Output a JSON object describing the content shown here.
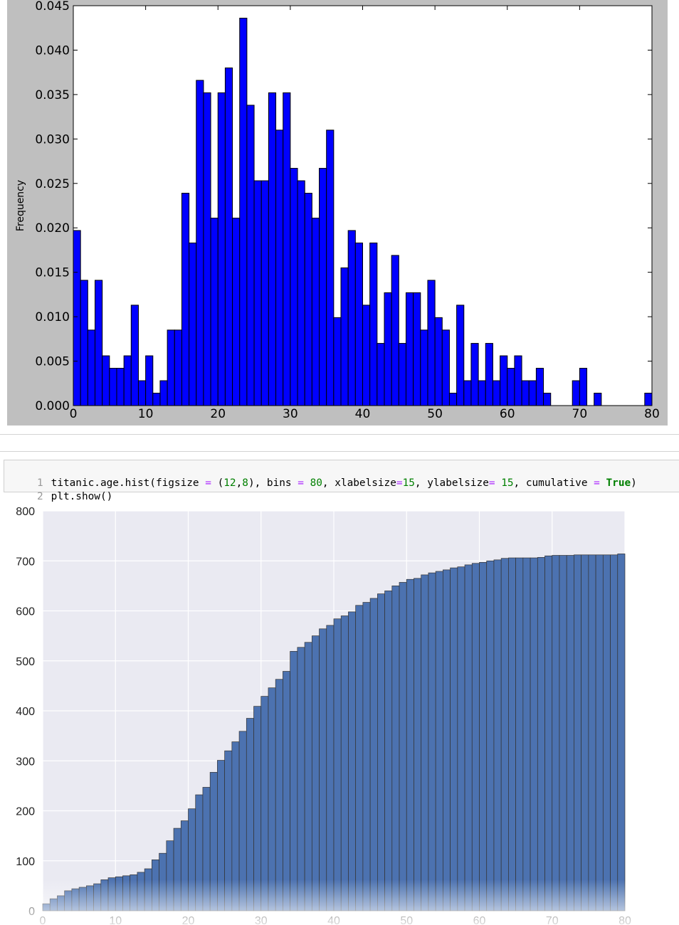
{
  "top_chart": {
    "ylabel": "Frequency",
    "colors": {
      "bar": "#0000ff",
      "edge": "#000000",
      "figure_bg": "#bfbfbf",
      "axes_bg": "#ffffff"
    }
  },
  "code_cell": {
    "line_numbers": [
      "1",
      "2"
    ],
    "segments": [
      [
        {
          "t": "titanic.age.hist(figsize ",
          "c": ""
        },
        {
          "t": "=",
          "c": "op"
        },
        {
          "t": " (",
          "c": ""
        },
        {
          "t": "12",
          "c": "num"
        },
        {
          "t": ",",
          "c": ""
        },
        {
          "t": "8",
          "c": "num"
        },
        {
          "t": "), bins ",
          "c": ""
        },
        {
          "t": "=",
          "c": "op"
        },
        {
          "t": " ",
          "c": ""
        },
        {
          "t": "80",
          "c": "num"
        },
        {
          "t": ", xlabelsize",
          "c": ""
        },
        {
          "t": "=",
          "c": "op"
        },
        {
          "t": "15",
          "c": "num"
        },
        {
          "t": ", ylabelsize",
          "c": ""
        },
        {
          "t": "=",
          "c": "op"
        },
        {
          "t": " ",
          "c": ""
        },
        {
          "t": "15",
          "c": "num"
        },
        {
          "t": ", cumulative ",
          "c": ""
        },
        {
          "t": "=",
          "c": "op"
        },
        {
          "t": " ",
          "c": ""
        },
        {
          "t": "True",
          "c": "kw"
        },
        {
          "t": ")",
          "c": ""
        }
      ],
      [
        {
          "t": "plt.show()",
          "c": ""
        }
      ]
    ]
  },
  "bottom_chart": {
    "colors": {
      "bar": "#4c72b0",
      "edge": "#333333",
      "axes_bg": "#eaeaf2",
      "grid": "#ffffff"
    }
  },
  "chart_data": [
    {
      "type": "bar",
      "ylabel": "Frequency",
      "xlabel": "",
      "title": "",
      "xlim": [
        0,
        80
      ],
      "ylim": [
        0,
        0.045
      ],
      "x_ticks": [
        "0",
        "10",
        "20",
        "30",
        "40",
        "50",
        "60",
        "70",
        "80"
      ],
      "y_ticks": [
        "0.000",
        "0.005",
        "0.010",
        "0.015",
        "0.020",
        "0.025",
        "0.030",
        "0.035",
        "0.040",
        "0.045"
      ],
      "bin_width": 1,
      "bin_starts": [
        0,
        1,
        2,
        3,
        4,
        5,
        6,
        7,
        8,
        9,
        10,
        11,
        12,
        13,
        14,
        15,
        16,
        17,
        18,
        19,
        20,
        21,
        22,
        23,
        24,
        25,
        26,
        27,
        28,
        29,
        30,
        31,
        32,
        33,
        34,
        35,
        36,
        37,
        38,
        39,
        40,
        41,
        42,
        43,
        44,
        45,
        46,
        47,
        48,
        49,
        50,
        51,
        52,
        53,
        54,
        55,
        56,
        57,
        58,
        59,
        60,
        61,
        62,
        63,
        64,
        65,
        66,
        67,
        68,
        69,
        70,
        71,
        72,
        73,
        74,
        75,
        76,
        77,
        78,
        79
      ],
      "values": [
        0.0197,
        0.0141,
        0.0085,
        0.0141,
        0.0056,
        0.0042,
        0.0042,
        0.0056,
        0.0113,
        0.0028,
        0.0056,
        0.0014,
        0.0028,
        0.0085,
        0.0085,
        0.0239,
        0.0183,
        0.0366,
        0.0352,
        0.0211,
        0.0352,
        0.038,
        0.0211,
        0.0436,
        0.0338,
        0.0253,
        0.0253,
        0.0352,
        0.031,
        0.0352,
        0.0267,
        0.0253,
        0.0239,
        0.0211,
        0.0267,
        0.031,
        0.0099,
        0.0155,
        0.0197,
        0.0183,
        0.0113,
        0.0183,
        0.007,
        0.0127,
        0.0169,
        0.007,
        0.0127,
        0.0127,
        0.0085,
        0.0141,
        0.0099,
        0.0085,
        0.0014,
        0.0113,
        0.0028,
        0.007,
        0.0028,
        0.007,
        0.0028,
        0.0056,
        0.0042,
        0.0056,
        0.0028,
        0.0028,
        0.0042,
        0.0014,
        0,
        0,
        0,
        0.0028,
        0.0042,
        0,
        0.0014,
        0,
        0,
        0,
        0,
        0,
        0,
        0.0014
      ],
      "grid": false
    },
    {
      "type": "bar",
      "title": "",
      "xlabel": "",
      "ylabel": "",
      "cumulative": true,
      "xlim": [
        0,
        80
      ],
      "ylim": [
        0,
        800
      ],
      "x_ticks": [
        "0",
        "10",
        "20",
        "30",
        "40",
        "50",
        "60",
        "70",
        "80"
      ],
      "y_ticks": [
        "0",
        "100",
        "200",
        "300",
        "400",
        "500",
        "600",
        "700",
        "800"
      ],
      "bin_width": 1,
      "values": [
        14,
        24,
        30,
        40,
        44,
        47,
        50,
        54,
        62,
        66,
        68,
        70,
        72,
        77,
        84,
        102,
        115,
        140,
        165,
        180,
        204,
        232,
        247,
        277,
        301,
        320,
        338,
        359,
        385,
        409,
        429,
        446,
        463,
        479,
        519,
        527,
        537,
        550,
        564,
        571,
        584,
        590,
        598,
        611,
        617,
        625,
        634,
        640,
        650,
        657,
        663,
        665,
        672,
        676,
        679,
        682,
        686,
        688,
        692,
        695,
        697,
        700,
        702,
        705,
        706,
        706,
        706,
        706,
        707,
        710,
        711,
        711,
        711,
        712,
        712,
        712,
        712,
        712,
        712,
        714
      ],
      "grid": true
    }
  ]
}
